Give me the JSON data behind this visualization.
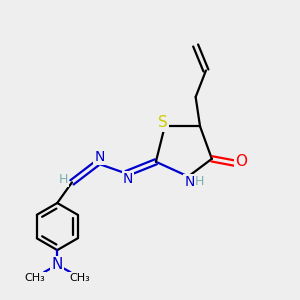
{
  "bg_color": "#eeeeee",
  "atom_colors": {
    "C": "#000000",
    "N": "#0000cc",
    "O": "#ff0000",
    "S": "#cccc00",
    "H": "#7ab0b0"
  },
  "figsize": [
    3.0,
    3.0
  ],
  "dpi": 100
}
